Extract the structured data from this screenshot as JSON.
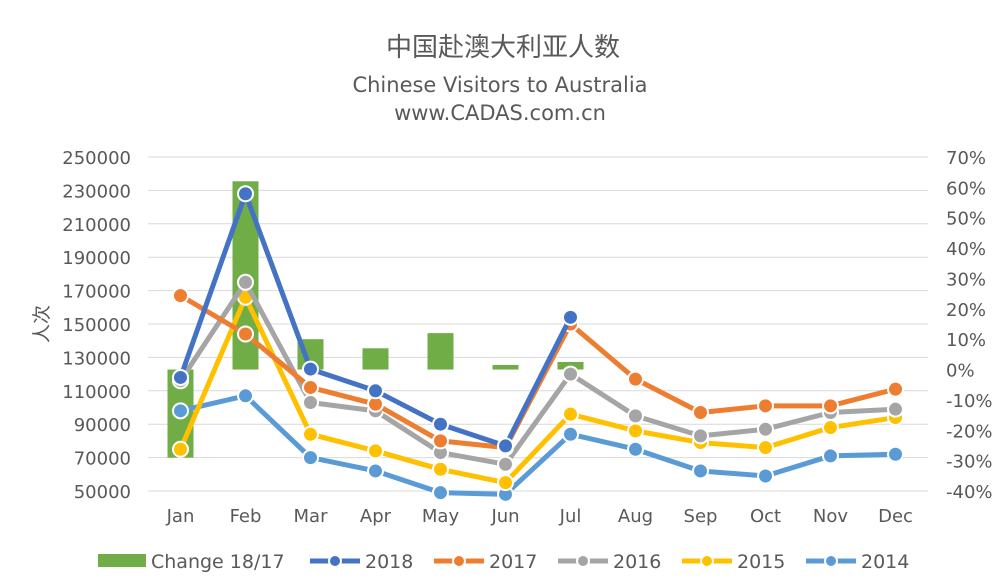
{
  "chart_data": {
    "type": "line",
    "title": "中国赴澳大利亚人数",
    "subtitle": "Chinese Visitors to Australia",
    "source": "www.CADAS.com.cn",
    "ylabel": "人次",
    "categories": [
      "Jan",
      "Feb",
      "Mar",
      "Apr",
      "May",
      "Jun",
      "Jul",
      "Aug",
      "Sep",
      "Oct",
      "Nov",
      "Dec"
    ],
    "ylim": [
      50000,
      250000
    ],
    "yticks": [
      50000,
      70000,
      90000,
      110000,
      130000,
      150000,
      170000,
      190000,
      210000,
      230000,
      250000
    ],
    "y2lim": [
      -0.4,
      0.7
    ],
    "y2ticks": [
      "70%",
      "60%",
      "50%",
      "40%",
      "30%",
      "20%",
      "10%",
      "0%",
      "-10%",
      "-20%",
      "-30%",
      "-40%"
    ],
    "bar_series": {
      "name": "Change 18/17",
      "axis": "right",
      "color": "#70AD47",
      "values": [
        -0.29,
        0.62,
        0.1,
        0.07,
        0.12,
        0.015,
        0.025,
        null,
        null,
        null,
        null,
        null
      ]
    },
    "series": [
      {
        "name": "2018",
        "color": "#4472C4",
        "values": [
          118000,
          228000,
          123000,
          110000,
          90000,
          77000,
          154000,
          null,
          null,
          null,
          null,
          null
        ]
      },
      {
        "name": "2017",
        "color": "#ED7D31",
        "values": [
          167000,
          144000,
          112000,
          102000,
          80000,
          76000,
          150000,
          117000,
          97000,
          101000,
          101000,
          111000
        ]
      },
      {
        "name": "2016",
        "color": "#A5A5A5",
        "values": [
          116000,
          175000,
          103000,
          98000,
          73000,
          66000,
          120000,
          95000,
          83000,
          87000,
          97000,
          99000
        ]
      },
      {
        "name": "2015",
        "color": "#FFC000",
        "values": [
          75000,
          166000,
          84000,
          74000,
          63000,
          55000,
          96000,
          86000,
          79000,
          76000,
          88000,
          94000
        ]
      },
      {
        "name": "2014",
        "color": "#5B9BD5",
        "values": [
          98000,
          107000,
          70000,
          62000,
          49000,
          48000,
          84000,
          75000,
          62000,
          59000,
          71000,
          72000
        ]
      }
    ],
    "grid": true,
    "legend_position": "bottom"
  }
}
